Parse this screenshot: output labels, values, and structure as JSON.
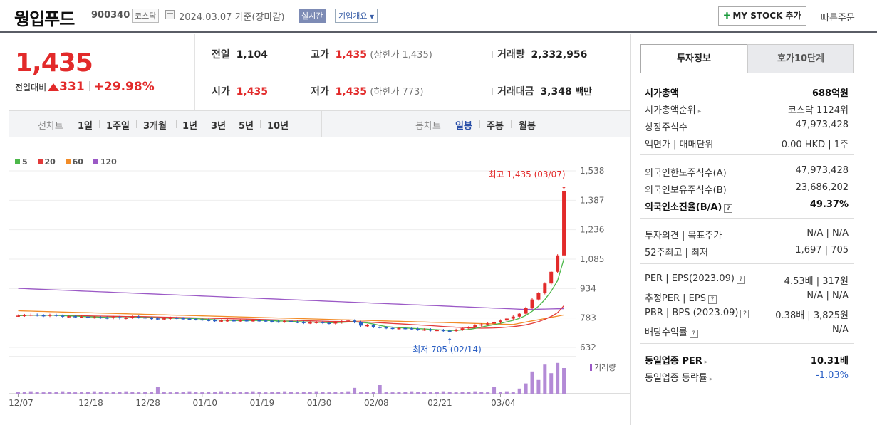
{
  "header": {
    "company_name": "웡입푸드",
    "code": "900340",
    "market": "코스닥",
    "date_text": "2024.03.07  기준(장마감)",
    "realtime_label": "실시간",
    "company_info_label": "기업개요",
    "my_stock_label": "MY STOCK 추가",
    "quick_order_label": "빠른주문"
  },
  "price": {
    "current": "1,435",
    "change_label": "전일대비",
    "change_amount": "331",
    "change_pct": "+29.98%",
    "prev_close_label": "전일",
    "prev_close": "1,104",
    "high_label": "고가",
    "high": "1,435",
    "upper_limit": "(상한가 1,435)",
    "volume_label": "거래량",
    "volume": "2,332,956",
    "open_label": "시가",
    "open": "1,435",
    "low_label": "저가",
    "low": "1,435",
    "lower_limit": "(하한가 773)",
    "amount_label": "거래대금",
    "amount": "3,348",
    "amount_unit": "백만"
  },
  "toolbar": {
    "line_chart_label": "선차트",
    "periods": [
      "1일",
      "1주일",
      "3개월",
      "1년",
      "3년",
      "5년",
      "10년"
    ],
    "candle_label": "봉차트",
    "candle_periods": [
      "일봉",
      "주봉",
      "월봉"
    ],
    "active_candle": "일봉"
  },
  "chart_data": {
    "type": "candlestick",
    "ma_legend": [
      {
        "name": "5",
        "color": "#4cb84a"
      },
      {
        "name": "20",
        "color": "#e23a3a"
      },
      {
        "name": "60",
        "color": "#f28c28"
      },
      {
        "name": "120",
        "color": "#9b59c6"
      }
    ],
    "y_ticks": [
      "1,538",
      "1,387",
      "1,236",
      "1,085",
      "934",
      "783",
      "632"
    ],
    "ylim": [
      632,
      1538
    ],
    "x_tick_labels": [
      "12/07",
      "12/18",
      "12/28",
      "01/10",
      "01/19",
      "01/30",
      "02/08",
      "02/21",
      "03/04"
    ],
    "high_annotation": "최고 1,435 (03/07)",
    "low_annotation": "최저 705 (02/14)",
    "volume_label": "거래량",
    "closes": [
      795,
      798,
      800,
      797,
      794,
      799,
      795,
      790,
      792,
      788,
      790,
      786,
      787,
      785,
      783,
      788,
      782,
      784,
      790,
      786,
      783,
      781,
      779,
      781,
      784,
      782,
      780,
      778,
      776,
      773,
      772,
      769,
      770,
      771,
      768,
      771,
      770,
      771,
      770,
      769,
      765,
      764,
      768,
      763,
      762,
      758,
      760,
      762,
      758,
      756,
      760,
      766,
      770,
      762,
      744,
      746,
      737,
      735,
      732,
      730,
      731,
      730,
      727,
      723,
      724,
      720,
      721,
      718,
      716,
      722,
      730,
      735,
      745,
      750,
      755,
      760,
      770,
      780,
      790,
      805,
      835,
      878,
      910,
      960,
      1020,
      1104,
      1435
    ],
    "volumes": [
      1,
      1,
      1,
      1,
      1,
      1,
      1,
      1,
      1,
      1,
      1,
      1,
      1,
      1,
      1,
      1,
      1,
      1,
      1,
      1,
      1,
      1,
      1,
      1,
      1,
      1,
      1,
      1,
      1,
      1,
      1,
      1,
      1,
      1,
      1,
      1,
      1,
      1,
      1,
      1,
      1,
      1,
      1,
      1,
      1,
      1,
      1,
      1,
      1,
      1,
      1,
      1,
      1,
      1,
      1,
      1,
      1,
      1,
      1,
      1,
      1,
      1,
      1,
      1,
      1,
      1,
      1,
      1,
      1,
      1,
      1,
      1,
      1,
      1,
      1,
      1,
      1,
      1,
      1,
      1,
      1,
      1,
      1,
      1,
      1,
      1,
      1
    ]
  },
  "right_panel": {
    "tabs": [
      "투자정보",
      "호가10단계"
    ],
    "rows": [
      {
        "label": "시가총액",
        "value": "688억원",
        "bold": true
      },
      {
        "label": "시가총액순위",
        "value": "코스닥 1124위"
      },
      {
        "label": "상장주식수",
        "value": "47,973,428"
      },
      {
        "label": "액면가 | 매매단위",
        "value": "0.00 HKD | 1주"
      },
      {
        "label": "외국인한도주식수(A)",
        "value": "47,973,428"
      },
      {
        "label": "외국인보유주식수(B)",
        "value": "23,686,202"
      },
      {
        "label": "외국인소진율(B/A)",
        "value": "49.37%",
        "bold": true
      },
      {
        "label": "투자의견 | 목표주가",
        "value": "N/A | N/A"
      },
      {
        "label": "52주최고 | 최저",
        "value": "1,697 | 705"
      },
      {
        "label": "PER | EPS(2023.09)",
        "value": "4.53배 | 317원"
      },
      {
        "label": "추정PER | EPS",
        "value": "N/A | N/A"
      },
      {
        "label": "PBR | BPS (2023.09)",
        "value": "0.38배 | 3,825원"
      },
      {
        "label": "배당수익률",
        "value": "N/A"
      },
      {
        "label": "동일업종 PER",
        "value": "10.31배",
        "bold": true
      },
      {
        "label": "동일업종 등락률",
        "value": "-1.03%"
      }
    ]
  }
}
